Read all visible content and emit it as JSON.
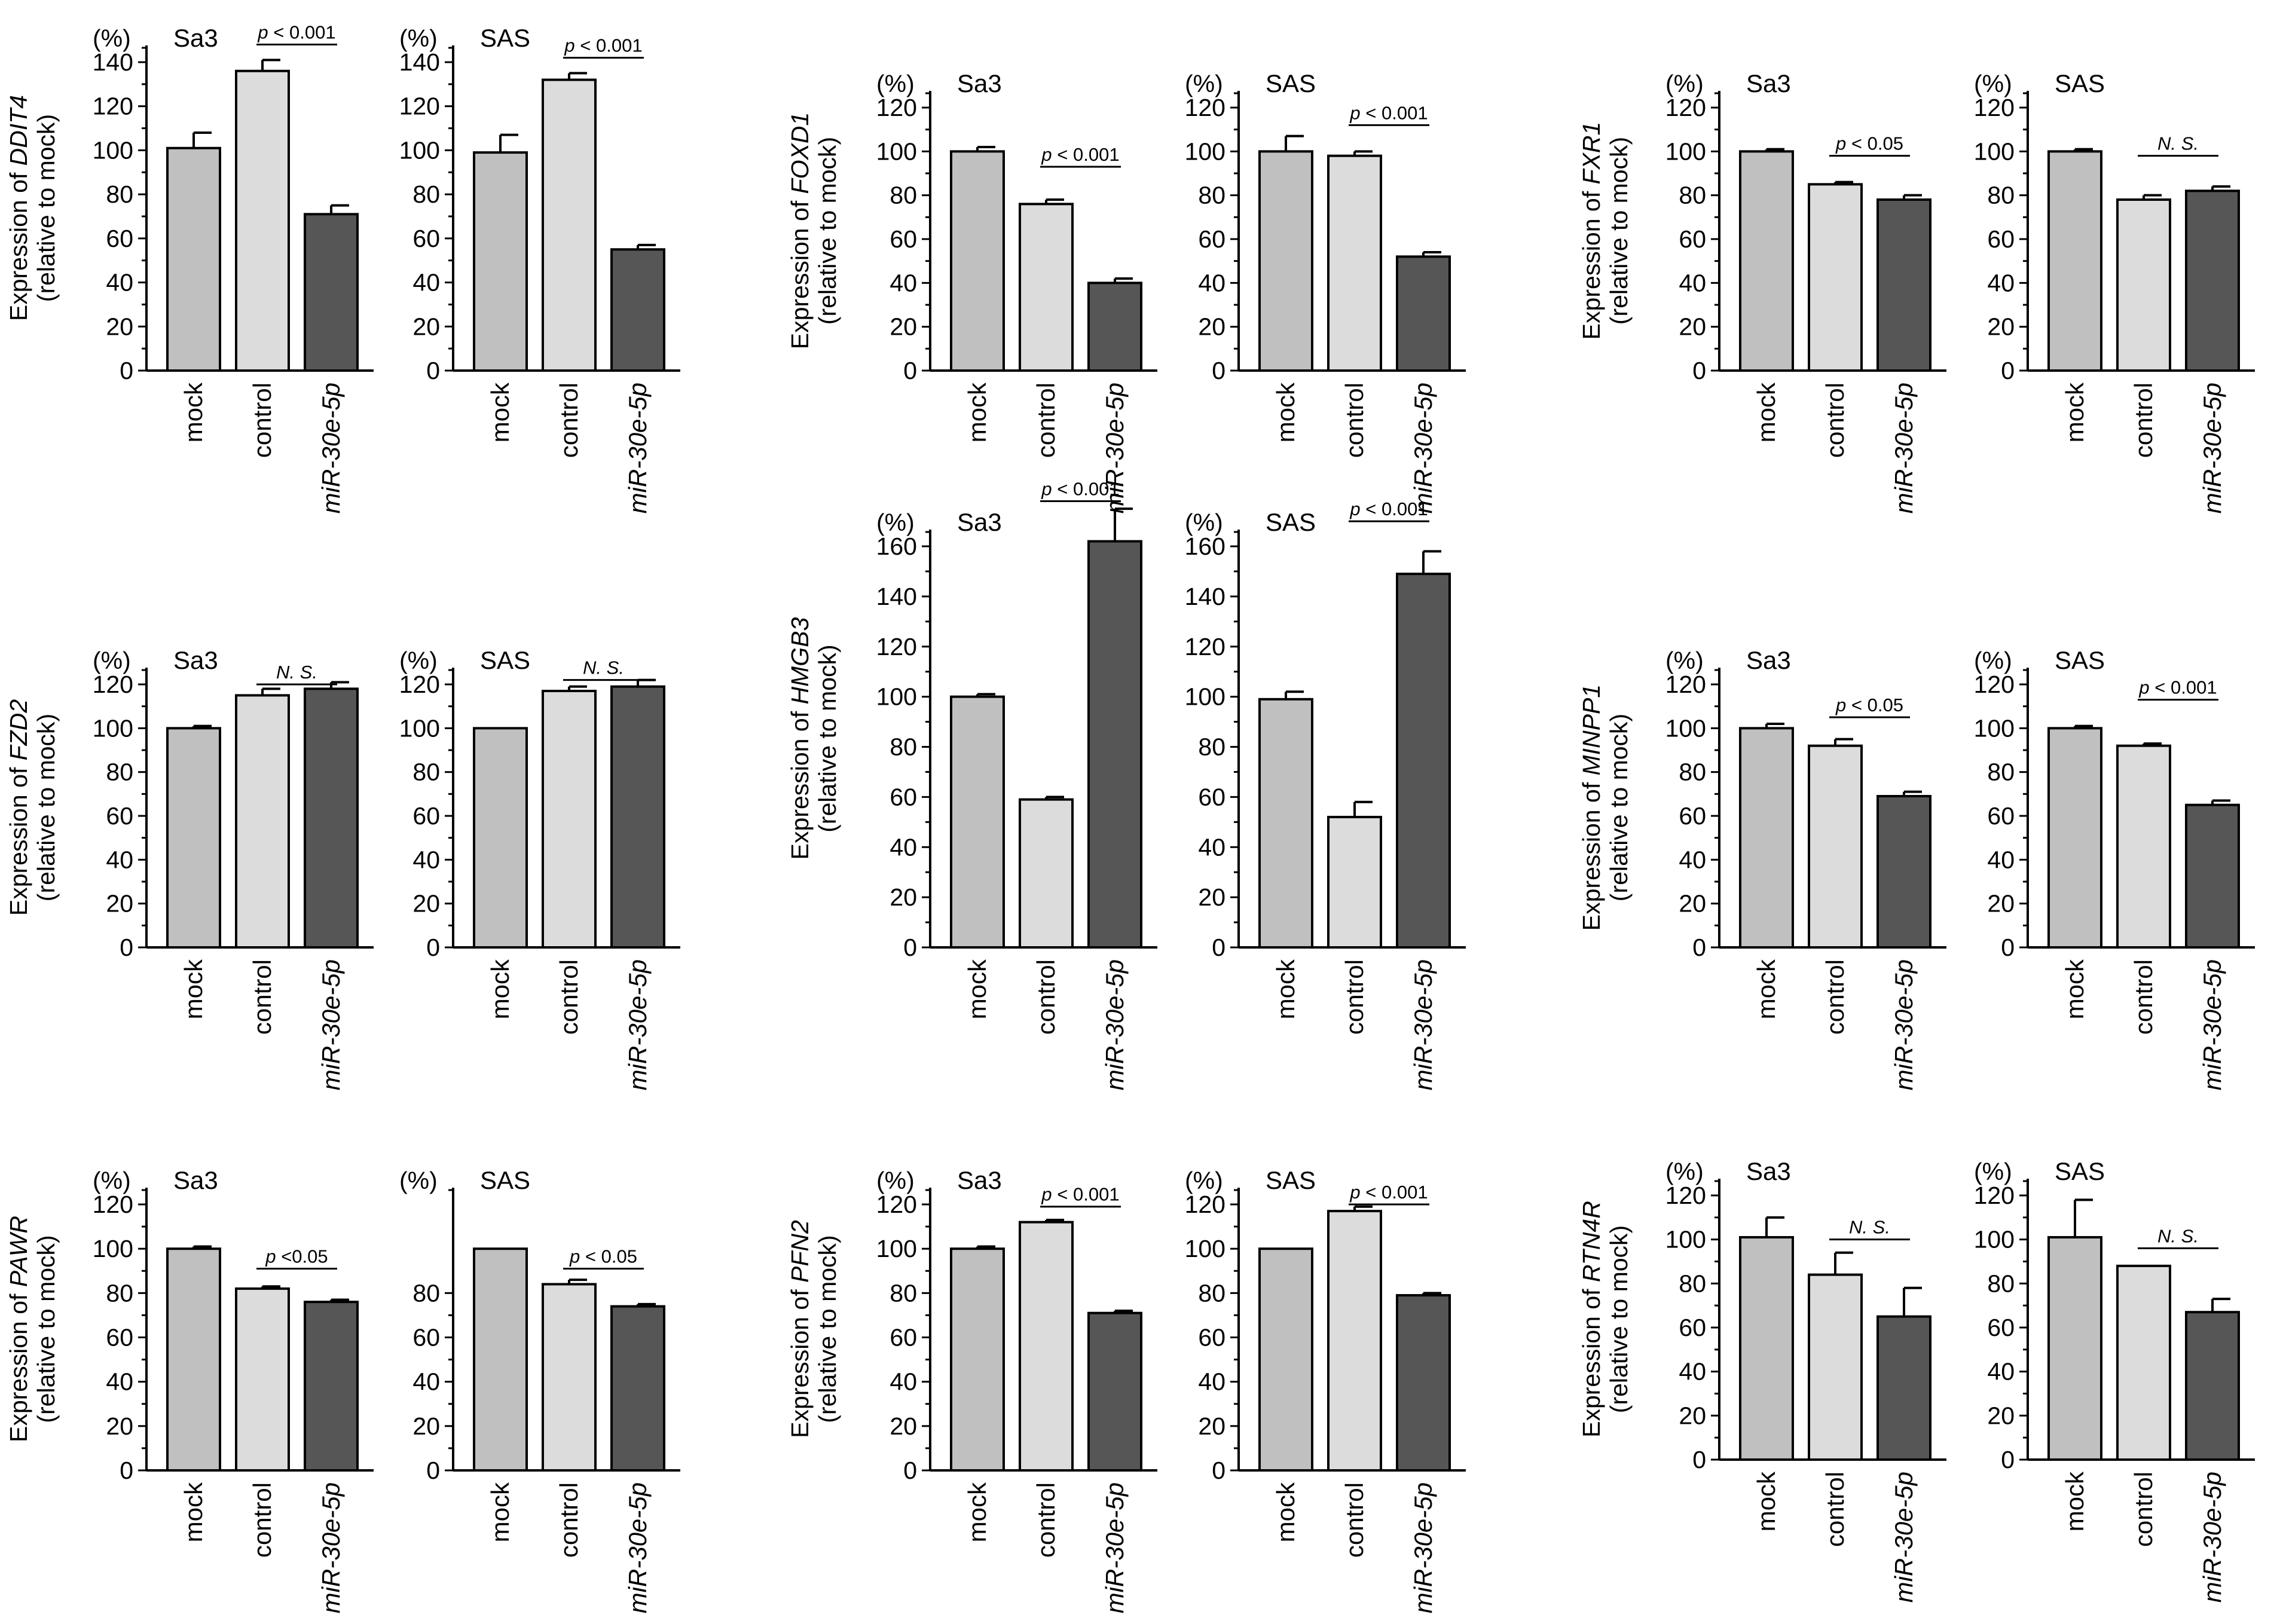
{
  "colors": {
    "mock": "#c0c0c0",
    "control": "#dcdcdc",
    "mir": "#565656",
    "stroke": "#000000"
  },
  "categories": [
    "mock",
    "control",
    "miR-30e-5p"
  ],
  "percent_label": "(%)",
  "ylabel_prefix": "Expression of ",
  "ylabel_suffix": "(relative to mock)",
  "chart_data": [
    {
      "type": "bar",
      "gene": "DDIT4",
      "cell": "Sa3",
      "title": "Sa3",
      "categories": [
        "mock",
        "control",
        "miR-30e-5p"
      ],
      "values": [
        101,
        136,
        71
      ],
      "errors": [
        7,
        5,
        4
      ],
      "ylim": [
        0,
        140
      ],
      "yticks": [
        0,
        20,
        40,
        60,
        80,
        100,
        120,
        140
      ],
      "significance": {
        "text": "p < 0.001",
        "italic_part": "p",
        "bars": [
          1,
          2
        ],
        "y": 148
      }
    },
    {
      "type": "bar",
      "gene": "DDIT4",
      "cell": "SAS",
      "title": "SAS",
      "categories": [
        "mock",
        "control",
        "miR-30e-5p"
      ],
      "values": [
        99,
        132,
        55
      ],
      "errors": [
        8,
        3,
        2
      ],
      "ylim": [
        0,
        140
      ],
      "yticks": [
        0,
        20,
        40,
        60,
        80,
        100,
        120,
        140
      ],
      "significance": {
        "text": "p < 0.001",
        "italic_part": "p",
        "bars": [
          1,
          2
        ],
        "y": 142
      }
    },
    {
      "type": "bar",
      "gene": "FOXD1",
      "cell": "Sa3",
      "title": "Sa3",
      "categories": [
        "mock",
        "control",
        "miR-30e-5p"
      ],
      "values": [
        100,
        76,
        40
      ],
      "errors": [
        2,
        2,
        2
      ],
      "ylim": [
        0,
        120
      ],
      "yticks": [
        0,
        20,
        40,
        60,
        80,
        100,
        120
      ],
      "significance": {
        "text": "p < 0.001",
        "italic_part": "p",
        "bars": [
          1,
          2
        ],
        "y": 93
      }
    },
    {
      "type": "bar",
      "gene": "FOXD1",
      "cell": "SAS",
      "title": "SAS",
      "categories": [
        "mock",
        "control",
        "miR-30e-5p"
      ],
      "values": [
        100,
        98,
        52
      ],
      "errors": [
        7,
        2,
        2
      ],
      "ylim": [
        0,
        120
      ],
      "yticks": [
        0,
        20,
        40,
        60,
        80,
        100,
        120
      ],
      "significance": {
        "text": "p < 0.001",
        "italic_part": "p",
        "bars": [
          1,
          2
        ],
        "y": 112
      }
    },
    {
      "type": "bar",
      "gene": "FXR1",
      "cell": "Sa3",
      "title": "Sa3",
      "categories": [
        "mock",
        "control",
        "miR-30e-5p"
      ],
      "values": [
        100,
        85,
        78
      ],
      "errors": [
        1,
        1,
        2
      ],
      "ylim": [
        0,
        120
      ],
      "yticks": [
        0,
        20,
        40,
        60,
        80,
        100,
        120
      ],
      "significance": {
        "text": "p < 0.05",
        "italic_part": "p",
        "bars": [
          1,
          2
        ],
        "y": 98
      }
    },
    {
      "type": "bar",
      "gene": "FXR1",
      "cell": "SAS",
      "title": "SAS",
      "categories": [
        "mock",
        "control",
        "miR-30e-5p"
      ],
      "values": [
        100,
        78,
        82
      ],
      "errors": [
        1,
        2,
        2
      ],
      "ylim": [
        0,
        120
      ],
      "yticks": [
        0,
        20,
        40,
        60,
        80,
        100,
        120
      ],
      "significance": {
        "text": "N. S.",
        "italic_part": "",
        "bars": [
          1,
          2
        ],
        "y": 98
      }
    },
    {
      "type": "bar",
      "gene": "FZD2",
      "cell": "Sa3",
      "title": "Sa3",
      "categories": [
        "mock",
        "control",
        "miR-30e-5p"
      ],
      "values": [
        100,
        115,
        118
      ],
      "errors": [
        1,
        3,
        3
      ],
      "ylim": [
        0,
        120
      ],
      "yticks": [
        0,
        20,
        40,
        60,
        80,
        100,
        120
      ],
      "significance": {
        "text": "N. S.",
        "italic_part": "",
        "bars": [
          1,
          2
        ],
        "y": 120
      }
    },
    {
      "type": "bar",
      "gene": "FZD2",
      "cell": "SAS",
      "title": "SAS",
      "categories": [
        "mock",
        "control",
        "miR-30e-5p"
      ],
      "values": [
        100,
        117,
        119
      ],
      "errors": [
        0,
        2,
        3
      ],
      "ylim": [
        0,
        120
      ],
      "yticks": [
        0,
        20,
        40,
        60,
        80,
        100,
        120
      ],
      "significance": {
        "text": "N. S.",
        "italic_part": "",
        "bars": [
          1,
          2
        ],
        "y": 122
      }
    },
    {
      "type": "bar",
      "gene": "HMGB3",
      "cell": "Sa3",
      "title": "Sa3",
      "categories": [
        "mock",
        "control",
        "miR-30e-5p"
      ],
      "values": [
        100,
        59,
        162
      ],
      "errors": [
        1,
        1,
        13
      ],
      "ylim": [
        0,
        160
      ],
      "yticks": [
        0,
        20,
        40,
        60,
        80,
        100,
        120,
        140,
        160
      ],
      "significance": {
        "text": "p < 0.001",
        "italic_part": "p",
        "bars": [
          1,
          2
        ],
        "y": 178
      }
    },
    {
      "type": "bar",
      "gene": "HMGB3",
      "cell": "SAS",
      "title": "SAS",
      "categories": [
        "mock",
        "control",
        "miR-30e-5p"
      ],
      "values": [
        99,
        52,
        149
      ],
      "errors": [
        3,
        6,
        9
      ],
      "ylim": [
        0,
        160
      ],
      "yticks": [
        0,
        20,
        40,
        60,
        80,
        100,
        120,
        140,
        160
      ],
      "significance": {
        "text": "p < 0.001",
        "italic_part": "p",
        "bars": [
          1,
          2
        ],
        "y": 170
      }
    },
    {
      "type": "bar",
      "gene": "MINPP1",
      "cell": "Sa3",
      "title": "Sa3",
      "categories": [
        "mock",
        "control",
        "miR-30e-5p"
      ],
      "values": [
        100,
        92,
        69
      ],
      "errors": [
        2,
        3,
        2
      ],
      "ylim": [
        0,
        120
      ],
      "yticks": [
        0,
        20,
        40,
        60,
        80,
        100,
        120
      ],
      "significance": {
        "text": "p < 0.05",
        "italic_part": "p",
        "bars": [
          1,
          2
        ],
        "y": 105
      }
    },
    {
      "type": "bar",
      "gene": "MINPP1",
      "cell": "SAS",
      "title": "SAS",
      "categories": [
        "mock",
        "control",
        "miR-30e-5p"
      ],
      "values": [
        100,
        92,
        65
      ],
      "errors": [
        1,
        1,
        2
      ],
      "ylim": [
        0,
        120
      ],
      "yticks": [
        0,
        20,
        40,
        60,
        80,
        100,
        120
      ],
      "significance": {
        "text": "p < 0.001",
        "italic_part": "p",
        "bars": [
          1,
          2
        ],
        "y": 113
      }
    },
    {
      "type": "bar",
      "gene": "PAWR",
      "cell": "Sa3",
      "title": "Sa3",
      "categories": [
        "mock",
        "control",
        "miR-30e-5p"
      ],
      "values": [
        100,
        82,
        76
      ],
      "errors": [
        1,
        1,
        1
      ],
      "ylim": [
        0,
        120
      ],
      "yticks": [
        0,
        20,
        40,
        60,
        80,
        100,
        120
      ],
      "significance": {
        "text": "p <0.05",
        "italic_part": "p",
        "bars": [
          1,
          2
        ],
        "y": 91
      }
    },
    {
      "type": "bar",
      "gene": "PAWR",
      "cell": "SAS",
      "title": "SAS",
      "categories": [
        "mock",
        "control",
        "miR-30e-5p"
      ],
      "values": [
        100,
        84,
        74
      ],
      "errors": [
        0,
        2,
        1
      ],
      "ylim": [
        0,
        120
      ],
      "yticks": [
        0,
        20,
        40,
        60,
        80
      ],
      "significance": {
        "text": "p < 0.05",
        "italic_part": "p",
        "bars": [
          1,
          2
        ],
        "y": 91
      }
    },
    {
      "type": "bar",
      "gene": "PFN2",
      "cell": "Sa3",
      "title": "Sa3",
      "categories": [
        "mock",
        "control",
        "miR-30e-5p"
      ],
      "values": [
        100,
        112,
        71
      ],
      "errors": [
        1,
        1,
        1
      ],
      "ylim": [
        0,
        120
      ],
      "yticks": [
        0,
        20,
        40,
        60,
        80,
        100,
        120
      ],
      "significance": {
        "text": "p < 0.001",
        "italic_part": "p",
        "bars": [
          1,
          2
        ],
        "y": 119
      }
    },
    {
      "type": "bar",
      "gene": "PFN2",
      "cell": "SAS",
      "title": "SAS",
      "categories": [
        "mock",
        "control",
        "miR-30e-5p"
      ],
      "values": [
        100,
        117,
        79
      ],
      "errors": [
        0,
        2,
        1
      ],
      "ylim": [
        0,
        120
      ],
      "yticks": [
        0,
        20,
        40,
        60,
        80,
        100,
        120
      ],
      "significance": {
        "text": "p < 0.001",
        "italic_part": "p",
        "bars": [
          1,
          2
        ],
        "y": 120
      }
    },
    {
      "type": "bar",
      "gene": "RTN4R",
      "cell": "Sa3",
      "title": "Sa3",
      "categories": [
        "mock",
        "control",
        "miR-30e-5p"
      ],
      "values": [
        101,
        84,
        65
      ],
      "errors": [
        9,
        10,
        13
      ],
      "ylim": [
        0,
        120
      ],
      "yticks": [
        0,
        20,
        40,
        60,
        80,
        100,
        120
      ],
      "significance": {
        "text": "N. S.",
        "italic_part": "",
        "bars": [
          1,
          2
        ],
        "y": 100
      }
    },
    {
      "type": "bar",
      "gene": "RTN4R",
      "cell": "SAS",
      "title": "SAS",
      "categories": [
        "mock",
        "control",
        "miR-30e-5p"
      ],
      "values": [
        101,
        88,
        67
      ],
      "errors": [
        17,
        0,
        6
      ],
      "ylim": [
        0,
        120
      ],
      "yticks": [
        0,
        20,
        40,
        60,
        80,
        100,
        120
      ],
      "significance": {
        "text": "N. S.",
        "italic_part": "",
        "bars": [
          1,
          2
        ],
        "y": 96
      }
    }
  ]
}
